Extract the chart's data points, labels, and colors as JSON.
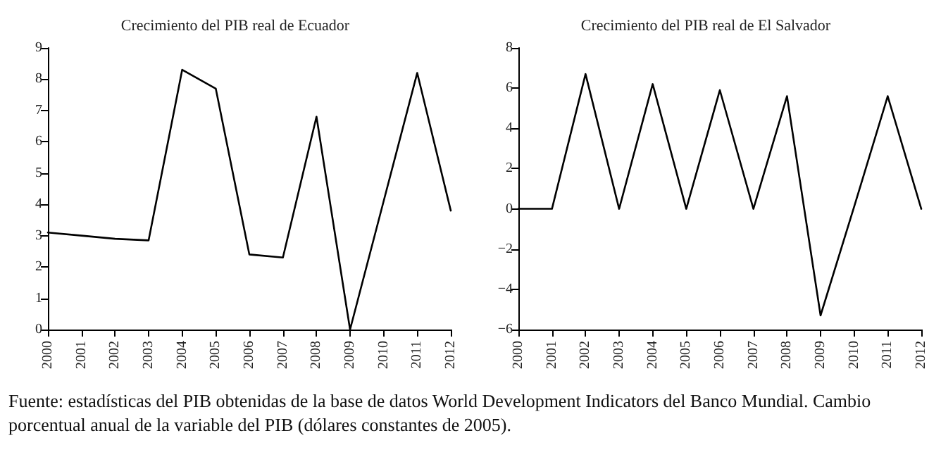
{
  "chart_data": [
    {
      "type": "line",
      "title": "Crecimiento del PIB real de Ecuador",
      "categories": [
        "2000",
        "2001",
        "2002",
        "2003",
        "2004",
        "2005",
        "2006",
        "2007",
        "2008",
        "2009",
        "2010",
        "2011",
        "2012"
      ],
      "series": [
        {
          "color": "#000000",
          "values": [
            3.1,
            3.0,
            2.9,
            2.85,
            8.3,
            7.7,
            2.4,
            2.3,
            6.8,
            0,
            4.1,
            8.2,
            3.8
          ]
        }
      ],
      "ylim": [
        0,
        9
      ],
      "yticks": [
        0,
        1,
        2,
        3,
        4,
        5,
        6,
        7,
        8,
        9
      ],
      "marker": "none",
      "line_style": "solid"
    },
    {
      "type": "line",
      "title": "Crecimiento del PIB real de El Salvador",
      "categories": [
        "2000",
        "2001",
        "2002",
        "2003",
        "2004",
        "2005",
        "2006",
        "2007",
        "2008",
        "2009",
        "2010",
        "2011",
        "2012"
      ],
      "series": [
        {
          "color": "#000000",
          "values": [
            0,
            0,
            6.7,
            0,
            6.2,
            0,
            5.9,
            0,
            5.6,
            -5.3,
            0.1,
            5.6,
            0
          ]
        }
      ],
      "ylim": [
        -6,
        8
      ],
      "yticks": [
        -6,
        -4,
        -2,
        0,
        2,
        4,
        6,
        8
      ],
      "marker": "none",
      "line_style": "solid",
      "annotations": [
        "Fuente: estadísticas del PIB obtenidas de la base de datos World Development Indicators del Banco Mundial. Cambio porcentual anual de la variable del PIB (dólares constantes de 2005)."
      ]
    }
  ]
}
